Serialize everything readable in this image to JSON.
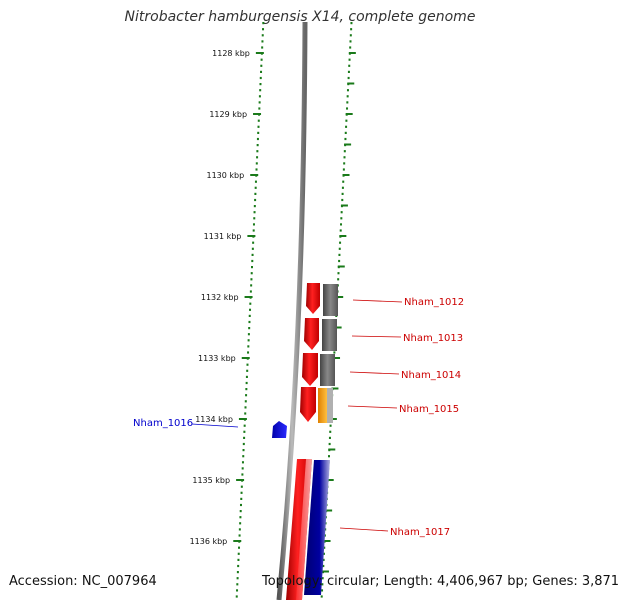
{
  "title": "Nitrobacter hamburgensis X14, complete genome",
  "accession": "Accession: NC_007964",
  "topology": "Topology: circular; Length: 4,406,967 bp; Genes: 3,871",
  "colors": {
    "tick": "#1a7a1a",
    "backbone": "#7a7a7a",
    "forward_gene": "#e00000",
    "reverse_gene": "#1010ee",
    "orf_gray": "#666666",
    "orf_orange": "#f0a020",
    "orf_navy": "#000080",
    "label_red": "#cc0000",
    "label_blue": "#0000cc"
  },
  "kbp_ticks": [
    "1128 kbp",
    "1129 kbp",
    "1130 kbp",
    "1131 kbp",
    "1132 kbp",
    "1133 kbp",
    "1134 kbp",
    "1135 kbp",
    "1136 kbp"
  ],
  "genes": [
    {
      "label": "Nham_1012",
      "strand": "forward"
    },
    {
      "label": "Nham_1013",
      "strand": "forward"
    },
    {
      "label": "Nham_1014",
      "strand": "forward"
    },
    {
      "label": "Nham_1015",
      "strand": "forward"
    },
    {
      "label": "Nham_1016",
      "strand": "reverse"
    },
    {
      "label": "Nham_1017",
      "strand": "forward"
    }
  ]
}
